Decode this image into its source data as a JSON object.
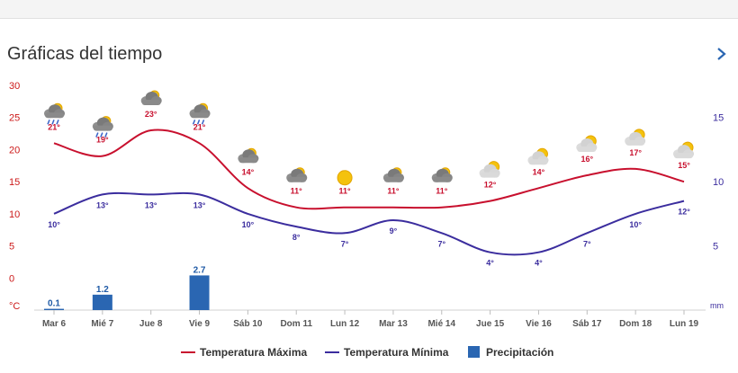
{
  "header": {
    "title": "Gráficas del tiempo"
  },
  "colors": {
    "max": "#c8102e",
    "min": "#3b2d9e",
    "precip": "#2a66b2",
    "label_precip": "#1f5aa6"
  },
  "chart_data": {
    "type": "line",
    "categories": [
      "Mar 6",
      "Mié 7",
      "Jue 8",
      "Vie 9",
      "Sáb 10",
      "Dom 11",
      "Lun 12",
      "Mar 13",
      "Mié 14",
      "Jue 15",
      "Vie 16",
      "Sáb 17",
      "Dom 18",
      "Lun 19"
    ],
    "series": [
      {
        "name": "Temperatura Máxima",
        "values": [
          21,
          19,
          23,
          21,
          14,
          11,
          11,
          11,
          11,
          12,
          14,
          16,
          17,
          15
        ]
      },
      {
        "name": "Temperatura Mínima",
        "values": [
          10,
          13,
          13,
          13,
          10,
          8,
          7,
          9,
          7,
          4,
          4,
          7,
          10,
          12
        ]
      },
      {
        "name": "Precipitación",
        "type": "bar",
        "axis": "right",
        "values": [
          0.1,
          1.2,
          0,
          2.7,
          0,
          0,
          0,
          0,
          0,
          0,
          0,
          0,
          0,
          0
        ],
        "labels": [
          "0.1",
          "1.2",
          "",
          "2.7",
          "",
          "",
          "",
          "",
          "",
          "",
          "",
          "",
          "",
          ""
        ]
      }
    ],
    "max_labels": [
      "21°",
      "19°",
      "23°",
      "21°",
      "14°",
      "11°",
      "11°",
      "11°",
      "11°",
      "12°",
      "14°",
      "16°",
      "17°",
      "15°"
    ],
    "min_labels": [
      "10°",
      "13°",
      "13°",
      "13°",
      "10°",
      "8°",
      "7°",
      "9°",
      "7°",
      "4°",
      "4°",
      "7°",
      "10°",
      "12°"
    ],
    "icons": [
      "rain-cloud-icon",
      "rain-cloud-icon",
      "cloudy-icon",
      "rain-cloud-icon",
      "cloudy-icon",
      "cloudy-icon",
      "sun-icon",
      "cloudy-icon",
      "cloudy-icon",
      "partly-cloudy-icon",
      "partly-cloudy-icon",
      "partly-cloudy-icon",
      "partly-cloudy-icon",
      "partly-cloudy-icon"
    ],
    "ylim": [
      -5,
      30
    ],
    "yticks": [
      30,
      25,
      20,
      15,
      10,
      5,
      0
    ],
    "ylabel": "°C",
    "y2lim": [
      0,
      17.5
    ],
    "y2ticks": [
      15,
      10,
      5
    ],
    "y2label": "mm",
    "grid": false
  }
}
